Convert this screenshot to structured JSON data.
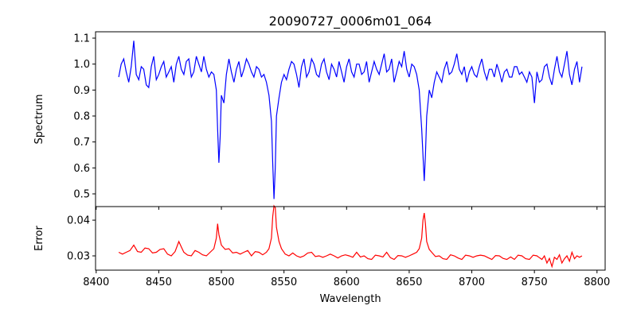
{
  "chart_data": [
    {
      "type": "line",
      "title": "20090727_0006m01_064",
      "xlabel": "",
      "ylabel": "Spectrum",
      "xlim": [
        8399.5,
        8806.5
      ],
      "ylim": [
        0.451,
        1.1245
      ],
      "yticks": [
        0.5,
        0.6,
        0.7,
        0.8,
        0.9,
        1.0,
        1.1
      ],
      "ytick_labels": [
        "0.5",
        "0.6",
        "0.7",
        "0.8",
        "0.9",
        "1.0",
        "1.1"
      ],
      "color": "#0000ff",
      "points": [
        [
          8418,
          0.95
        ],
        [
          8420,
          1.0
        ],
        [
          8422,
          1.02
        ],
        [
          8424,
          0.97
        ],
        [
          8426,
          0.93
        ],
        [
          8428,
          0.99
        ],
        [
          8430,
          1.09
        ],
        [
          8432,
          0.96
        ],
        [
          8434,
          0.94
        ],
        [
          8436,
          0.99
        ],
        [
          8438,
          0.98
        ],
        [
          8440,
          0.92
        ],
        [
          8442,
          0.91
        ],
        [
          8444,
          0.99
        ],
        [
          8446,
          1.03
        ],
        [
          8448,
          0.94
        ],
        [
          8450,
          0.96
        ],
        [
          8452,
          0.99
        ],
        [
          8454,
          1.01
        ],
        [
          8456,
          0.95
        ],
        [
          8458,
          0.97
        ],
        [
          8460,
          0.99
        ],
        [
          8462,
          0.93
        ],
        [
          8464,
          1.0
        ],
        [
          8466,
          1.03
        ],
        [
          8468,
          0.98
        ],
        [
          8470,
          0.96
        ],
        [
          8472,
          1.01
        ],
        [
          8474,
          1.02
        ],
        [
          8476,
          0.95
        ],
        [
          8478,
          0.97
        ],
        [
          8480,
          1.03
        ],
        [
          8482,
          1.0
        ],
        [
          8484,
          0.97
        ],
        [
          8486,
          1.03
        ],
        [
          8488,
          0.98
        ],
        [
          8490,
          0.95
        ],
        [
          8492,
          0.97
        ],
        [
          8494,
          0.96
        ],
        [
          8496,
          0.9
        ],
        [
          8497,
          0.75
        ],
        [
          8498,
          0.62
        ],
        [
          8499,
          0.72
        ],
        [
          8500,
          0.88
        ],
        [
          8502,
          0.85
        ],
        [
          8504,
          0.96
        ],
        [
          8506,
          1.02
        ],
        [
          8508,
          0.97
        ],
        [
          8510,
          0.93
        ],
        [
          8512,
          0.98
        ],
        [
          8514,
          1.01
        ],
        [
          8516,
          0.95
        ],
        [
          8518,
          0.98
        ],
        [
          8520,
          1.02
        ],
        [
          8522,
          1.0
        ],
        [
          8524,
          0.97
        ],
        [
          8526,
          0.95
        ],
        [
          8528,
          0.99
        ],
        [
          8530,
          0.98
        ],
        [
          8532,
          0.95
        ],
        [
          8534,
          0.96
        ],
        [
          8536,
          0.93
        ],
        [
          8538,
          0.88
        ],
        [
          8540,
          0.78
        ],
        [
          8541,
          0.62
        ],
        [
          8542,
          0.48
        ],
        [
          8543,
          0.6
        ],
        [
          8544,
          0.8
        ],
        [
          8546,
          0.87
        ],
        [
          8548,
          0.93
        ],
        [
          8550,
          0.96
        ],
        [
          8552,
          0.94
        ],
        [
          8554,
          0.98
        ],
        [
          8556,
          1.01
        ],
        [
          8558,
          1.0
        ],
        [
          8560,
          0.96
        ],
        [
          8562,
          0.91
        ],
        [
          8564,
          0.99
        ],
        [
          8566,
          1.02
        ],
        [
          8568,
          0.95
        ],
        [
          8570,
          0.97
        ],
        [
          8572,
          1.02
        ],
        [
          8574,
          1.0
        ],
        [
          8576,
          0.96
        ],
        [
          8578,
          0.95
        ],
        [
          8580,
          1.0
        ],
        [
          8582,
          1.02
        ],
        [
          8584,
          0.97
        ],
        [
          8586,
          0.94
        ],
        [
          8588,
          1.0
        ],
        [
          8590,
          0.98
        ],
        [
          8592,
          0.95
        ],
        [
          8594,
          1.01
        ],
        [
          8596,
          0.97
        ],
        [
          8598,
          0.93
        ],
        [
          8600,
          0.99
        ],
        [
          8602,
          1.02
        ],
        [
          8604,
          0.97
        ],
        [
          8606,
          0.95
        ],
        [
          8608,
          1.0
        ],
        [
          8610,
          1.0
        ],
        [
          8612,
          0.96
        ],
        [
          8614,
          0.97
        ],
        [
          8616,
          1.01
        ],
        [
          8618,
          0.93
        ],
        [
          8620,
          0.97
        ],
        [
          8622,
          1.01
        ],
        [
          8624,
          0.98
        ],
        [
          8626,
          0.96
        ],
        [
          8628,
          1.0
        ],
        [
          8630,
          1.04
        ],
        [
          8632,
          0.97
        ],
        [
          8634,
          0.98
        ],
        [
          8636,
          1.02
        ],
        [
          8638,
          0.93
        ],
        [
          8640,
          0.97
        ],
        [
          8642,
          1.01
        ],
        [
          8644,
          0.99
        ],
        [
          8646,
          1.05
        ],
        [
          8648,
          0.98
        ],
        [
          8650,
          0.95
        ],
        [
          8652,
          1.0
        ],
        [
          8654,
          0.99
        ],
        [
          8656,
          0.96
        ],
        [
          8658,
          0.9
        ],
        [
          8660,
          0.75
        ],
        [
          8662,
          0.55
        ],
        [
          8663,
          0.65
        ],
        [
          8664,
          0.8
        ],
        [
          8666,
          0.9
        ],
        [
          8668,
          0.87
        ],
        [
          8670,
          0.93
        ],
        [
          8672,
          0.97
        ],
        [
          8674,
          0.95
        ],
        [
          8676,
          0.93
        ],
        [
          8678,
          0.98
        ],
        [
          8680,
          1.01
        ],
        [
          8682,
          0.96
        ],
        [
          8684,
          0.97
        ],
        [
          8686,
          1.0
        ],
        [
          8688,
          1.04
        ],
        [
          8690,
          0.98
        ],
        [
          8692,
          0.96
        ],
        [
          8694,
          0.99
        ],
        [
          8696,
          0.93
        ],
        [
          8698,
          0.97
        ],
        [
          8700,
          0.99
        ],
        [
          8702,
          0.96
        ],
        [
          8704,
          0.95
        ],
        [
          8706,
          0.99
        ],
        [
          8708,
          1.02
        ],
        [
          8710,
          0.97
        ],
        [
          8712,
          0.94
        ],
        [
          8714,
          0.98
        ],
        [
          8716,
          0.98
        ],
        [
          8718,
          0.95
        ],
        [
          8720,
          1.0
        ],
        [
          8722,
          0.97
        ],
        [
          8724,
          0.93
        ],
        [
          8726,
          0.97
        ],
        [
          8728,
          0.98
        ],
        [
          8730,
          0.95
        ],
        [
          8732,
          0.95
        ],
        [
          8734,
          0.99
        ],
        [
          8736,
          0.99
        ],
        [
          8738,
          0.96
        ],
        [
          8740,
          0.97
        ],
        [
          8742,
          0.95
        ],
        [
          8744,
          0.93
        ],
        [
          8746,
          0.97
        ],
        [
          8748,
          0.95
        ],
        [
          8750,
          0.85
        ],
        [
          8752,
          0.97
        ],
        [
          8754,
          0.93
        ],
        [
          8756,
          0.94
        ],
        [
          8758,
          0.99
        ],
        [
          8760,
          1.0
        ],
        [
          8762,
          0.95
        ],
        [
          8764,
          0.92
        ],
        [
          8766,
          0.98
        ],
        [
          8768,
          1.03
        ],
        [
          8770,
          0.97
        ],
        [
          8772,
          0.95
        ],
        [
          8774,
          1.0
        ],
        [
          8776,
          1.05
        ],
        [
          8778,
          0.96
        ],
        [
          8780,
          0.92
        ],
        [
          8782,
          0.98
        ],
        [
          8784,
          1.01
        ],
        [
          8786,
          0.93
        ],
        [
          8788,
          0.99
        ]
      ]
    },
    {
      "type": "line",
      "xlabel": "Wavelength",
      "ylabel": "Error",
      "xlim": [
        8399.5,
        8806.5
      ],
      "ylim": [
        0.026,
        0.0438
      ],
      "xticks": [
        8400,
        8450,
        8500,
        8550,
        8600,
        8650,
        8700,
        8750,
        8800
      ],
      "xtick_labels": [
        "8400",
        "8450",
        "8500",
        "8550",
        "8600",
        "8650",
        "8700",
        "8750",
        "8800"
      ],
      "yticks": [
        0.03,
        0.04
      ],
      "ytick_labels": [
        "0.03",
        "0.04"
      ],
      "color": "#ff0000",
      "points": [
        [
          8418,
          0.031
        ],
        [
          8421,
          0.0305
        ],
        [
          8424,
          0.031
        ],
        [
          8427,
          0.0315
        ],
        [
          8430,
          0.033
        ],
        [
          8433,
          0.0312
        ],
        [
          8436,
          0.031
        ],
        [
          8439,
          0.0322
        ],
        [
          8442,
          0.032
        ],
        [
          8445,
          0.0308
        ],
        [
          8448,
          0.031
        ],
        [
          8451,
          0.0318
        ],
        [
          8454,
          0.032
        ],
        [
          8457,
          0.0305
        ],
        [
          8460,
          0.03
        ],
        [
          8463,
          0.0312
        ],
        [
          8466,
          0.034
        ],
        [
          8468,
          0.0325
        ],
        [
          8470,
          0.031
        ],
        [
          8473,
          0.0302
        ],
        [
          8476,
          0.03
        ],
        [
          8479,
          0.0315
        ],
        [
          8482,
          0.031
        ],
        [
          8485,
          0.0303
        ],
        [
          8488,
          0.03
        ],
        [
          8491,
          0.031
        ],
        [
          8494,
          0.032
        ],
        [
          8496,
          0.035
        ],
        [
          8497,
          0.039
        ],
        [
          8498,
          0.036
        ],
        [
          8500,
          0.033
        ],
        [
          8503,
          0.0318
        ],
        [
          8506,
          0.032
        ],
        [
          8509,
          0.0308
        ],
        [
          8512,
          0.031
        ],
        [
          8515,
          0.0305
        ],
        [
          8518,
          0.031
        ],
        [
          8521,
          0.0315
        ],
        [
          8524,
          0.03
        ],
        [
          8527,
          0.0312
        ],
        [
          8530,
          0.031
        ],
        [
          8533,
          0.0303
        ],
        [
          8536,
          0.031
        ],
        [
          8538,
          0.032
        ],
        [
          8540,
          0.035
        ],
        [
          8541,
          0.041
        ],
        [
          8542,
          0.044
        ],
        [
          8543,
          0.0435
        ],
        [
          8544,
          0.038
        ],
        [
          8546,
          0.034
        ],
        [
          8548,
          0.032
        ],
        [
          8551,
          0.0305
        ],
        [
          8554,
          0.03
        ],
        [
          8557,
          0.0308
        ],
        [
          8560,
          0.03
        ],
        [
          8563,
          0.0296
        ],
        [
          8566,
          0.03
        ],
        [
          8569,
          0.0308
        ],
        [
          8572,
          0.031
        ],
        [
          8575,
          0.0298
        ],
        [
          8578,
          0.03
        ],
        [
          8581,
          0.0296
        ],
        [
          8584,
          0.03
        ],
        [
          8587,
          0.0305
        ],
        [
          8590,
          0.03
        ],
        [
          8593,
          0.0294
        ],
        [
          8596,
          0.03
        ],
        [
          8599,
          0.0303
        ],
        [
          8602,
          0.03
        ],
        [
          8605,
          0.0296
        ],
        [
          8608,
          0.031
        ],
        [
          8611,
          0.0297
        ],
        [
          8614,
          0.03
        ],
        [
          8617,
          0.0292
        ],
        [
          8620,
          0.029
        ],
        [
          8623,
          0.0302
        ],
        [
          8626,
          0.03
        ],
        [
          8629,
          0.0297
        ],
        [
          8632,
          0.031
        ],
        [
          8635,
          0.0295
        ],
        [
          8638,
          0.029
        ],
        [
          8641,
          0.0301
        ],
        [
          8644,
          0.03
        ],
        [
          8647,
          0.0296
        ],
        [
          8650,
          0.03
        ],
        [
          8653,
          0.0305
        ],
        [
          8656,
          0.031
        ],
        [
          8658,
          0.032
        ],
        [
          8660,
          0.035
        ],
        [
          8661,
          0.04
        ],
        [
          8662,
          0.042
        ],
        [
          8663,
          0.039
        ],
        [
          8664,
          0.034
        ],
        [
          8666,
          0.0318
        ],
        [
          8668,
          0.031
        ],
        [
          8671,
          0.0298
        ],
        [
          8674,
          0.03
        ],
        [
          8677,
          0.0292
        ],
        [
          8680,
          0.029
        ],
        [
          8683,
          0.0303
        ],
        [
          8686,
          0.03
        ],
        [
          8689,
          0.0294
        ],
        [
          8692,
          0.029
        ],
        [
          8695,
          0.0302
        ],
        [
          8698,
          0.03
        ],
        [
          8701,
          0.0296
        ],
        [
          8704,
          0.03
        ],
        [
          8707,
          0.0302
        ],
        [
          8710,
          0.03
        ],
        [
          8713,
          0.0295
        ],
        [
          8716,
          0.029
        ],
        [
          8719,
          0.0301
        ],
        [
          8722,
          0.03
        ],
        [
          8725,
          0.0293
        ],
        [
          8728,
          0.029
        ],
        [
          8731,
          0.0297
        ],
        [
          8734,
          0.029
        ],
        [
          8737,
          0.0302
        ],
        [
          8740,
          0.03
        ],
        [
          8743,
          0.0292
        ],
        [
          8746,
          0.029
        ],
        [
          8749,
          0.0302
        ],
        [
          8752,
          0.03
        ],
        [
          8754,
          0.0295
        ],
        [
          8756,
          0.029
        ],
        [
          8758,
          0.03
        ],
        [
          8760,
          0.028
        ],
        [
          8762,
          0.0293
        ],
        [
          8764,
          0.027
        ],
        [
          8766,
          0.0296
        ],
        [
          8768,
          0.029
        ],
        [
          8770,
          0.0303
        ],
        [
          8772,
          0.028
        ],
        [
          8774,
          0.0292
        ],
        [
          8776,
          0.03
        ],
        [
          8778,
          0.0285
        ],
        [
          8780,
          0.031
        ],
        [
          8782,
          0.0292
        ],
        [
          8784,
          0.03
        ],
        [
          8786,
          0.0296
        ],
        [
          8788,
          0.03
        ]
      ]
    }
  ]
}
